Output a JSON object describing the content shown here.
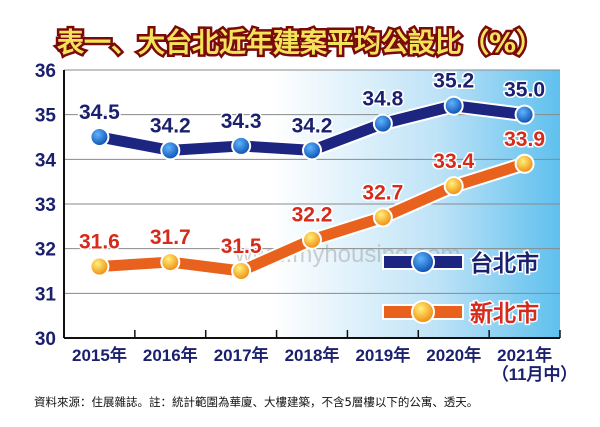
{
  "chart_data": {
    "type": "line",
    "title": "表一、大台北近年建案平均公設比（%）",
    "categories": [
      "2015年",
      "2016年",
      "2017年",
      "2018年",
      "2019年",
      "2020年",
      "2021年"
    ],
    "category_sublabels": [
      "",
      "",
      "",
      "",
      "",
      "",
      "（11月中）"
    ],
    "ylim": [
      30,
      36
    ],
    "yticks": [
      30,
      31,
      32,
      33,
      34,
      35,
      36
    ],
    "grid": true,
    "legend_placement": "bottom-right",
    "series": [
      {
        "name": "台北市",
        "values": [
          34.5,
          34.2,
          34.3,
          34.2,
          34.8,
          35.2,
          35.0
        ],
        "labels": [
          "34.5",
          "34.2",
          "34.3",
          "34.2",
          "34.8",
          "35.2",
          "35.0"
        ],
        "color": "#1c2580",
        "marker_color": "#1a6fd0"
      },
      {
        "name": "新北市",
        "values": [
          31.6,
          31.7,
          31.5,
          32.2,
          32.7,
          33.4,
          33.9
        ],
        "labels": [
          "31.6",
          "31.7",
          "31.5",
          "32.2",
          "32.7",
          "33.4",
          "33.9"
        ],
        "color": "#e8621e",
        "marker_color": "#f7b81a"
      }
    ],
    "note": "資料來源：住展雜誌。註：統計範圍為華廈、大樓建築，不含5層樓以下的公寓、透天。",
    "watermark": "www.myhousing.com"
  }
}
